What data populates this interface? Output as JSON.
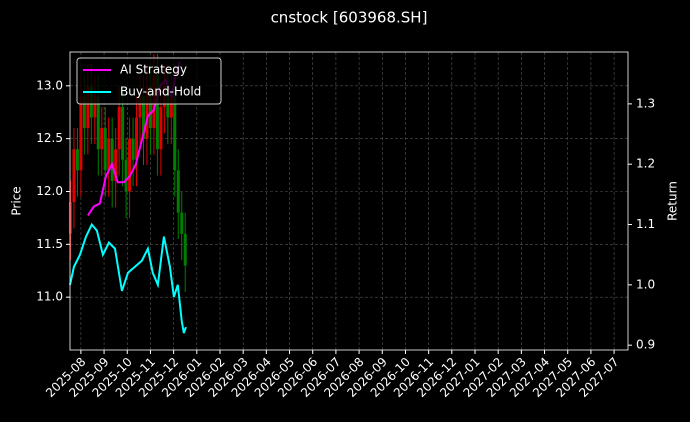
{
  "chart_data": {
    "type": "candlestick-with-returns",
    "title": "cnstock [603968.SH]",
    "ylabel": "Price",
    "y2label": "Return",
    "xlim": [
      -0.47,
      23.6
    ],
    "xticks": [
      {
        "value": 0,
        "label": "2025-08"
      },
      {
        "value": 1,
        "label": "2025-09"
      },
      {
        "value": 2,
        "label": "2025-10"
      },
      {
        "value": 3,
        "label": "2025-11"
      },
      {
        "value": 4,
        "label": "2025-12"
      },
      {
        "value": 5,
        "label": "2026-01"
      },
      {
        "value": 6,
        "label": "2026-02"
      },
      {
        "value": 7,
        "label": "2026-03"
      },
      {
        "value": 8,
        "label": "2026-04"
      },
      {
        "value": 9,
        "label": "2026-05"
      },
      {
        "value": 10,
        "label": "2026-06"
      },
      {
        "value": 11,
        "label": "2026-07"
      },
      {
        "value": 12,
        "label": "2026-08"
      },
      {
        "value": 13,
        "label": "2026-09"
      },
      {
        "value": 14,
        "label": "2026-10"
      },
      {
        "value": 15,
        "label": "2026-11"
      },
      {
        "value": 16,
        "label": "2026-12"
      },
      {
        "value": 17,
        "label": "2027-01"
      },
      {
        "value": 18,
        "label": "2027-02"
      },
      {
        "value": 19,
        "label": "2027-03"
      },
      {
        "value": 20,
        "label": "2027-04"
      },
      {
        "value": 21,
        "label": "2027-05"
      },
      {
        "value": 22,
        "label": "2027-06"
      },
      {
        "value": 23,
        "label": "2027-07"
      }
    ],
    "ylim": [
      10.5,
      13.32
    ],
    "yticks": [
      {
        "value": 11,
        "label": "11.0"
      },
      11.5,
      {
        "value": 12,
        "label": "12.0"
      },
      12.5,
      {
        "value": 13,
        "label": "13.0"
      }
    ],
    "y2lim": [
      0.892,
      1.386
    ],
    "y2ticks": [
      0.9,
      {
        "value": 1,
        "label": "1.0"
      },
      1.1,
      1.2,
      1.3
    ],
    "grid": true,
    "legend": "upper left",
    "candles": {
      "up_color": "#e00000",
      "down_color": "#008000",
      "x": [
        -0.45,
        -0.3,
        -0.15,
        0,
        0.15,
        0.3,
        0.45,
        0.6,
        0.75,
        0.9,
        1.05,
        1.2,
        1.35,
        1.5,
        1.65,
        1.8,
        1.95,
        2.1,
        2.25,
        2.4,
        2.55,
        2.7,
        2.85,
        3.0,
        3.15,
        3.3,
        3.45,
        3.6,
        3.75,
        3.9,
        4.05,
        4.2,
        4.35,
        4.5
      ],
      "open": [
        11.6,
        11.9,
        12.4,
        12.2,
        12.9,
        12.6,
        13.0,
        12.7,
        12.9,
        12.4,
        12.6,
        12.2,
        12.5,
        12.1,
        12.4,
        12.8,
        12.3,
        12.0,
        12.5,
        12.3,
        12.7,
        12.9,
        12.5,
        13.0,
        12.6,
        13.1,
        12.4,
        12.8,
        13.0,
        12.7,
        12.9,
        12.2,
        11.8,
        11.6
      ],
      "high": [
        12.1,
        12.6,
        12.6,
        13.1,
        13.1,
        13.2,
        13.2,
        13.1,
        13.1,
        12.8,
        12.8,
        12.7,
        12.7,
        12.6,
        13.0,
        13.0,
        12.5,
        12.7,
        12.7,
        12.9,
        13.1,
        13.1,
        13.2,
        13.2,
        13.3,
        13.3,
        13.0,
        13.2,
        13.2,
        13.1,
        13.1,
        12.4,
        12.0,
        11.8
      ],
      "low": [
        11.35,
        11.65,
        11.95,
        11.95,
        12.35,
        12.35,
        12.45,
        12.45,
        12.15,
        12.15,
        11.95,
        11.95,
        11.85,
        11.85,
        12.15,
        12.05,
        11.75,
        11.75,
        12.05,
        12.05,
        12.45,
        12.25,
        12.25,
        12.35,
        12.35,
        12.15,
        12.15,
        12.55,
        12.45,
        12.45,
        11.95,
        11.55,
        11.35,
        11.05
      ],
      "close": [
        11.9,
        12.4,
        12.2,
        12.9,
        12.6,
        13.0,
        12.7,
        12.9,
        12.4,
        12.6,
        12.2,
        12.5,
        12.1,
        12.4,
        12.8,
        12.3,
        12.0,
        12.5,
        12.3,
        12.7,
        12.9,
        12.5,
        13.0,
        12.6,
        13.1,
        12.4,
        12.8,
        13.0,
        12.7,
        12.9,
        12.2,
        11.8,
        11.6,
        11.3
      ]
    },
    "series": [
      {
        "name": "AI Strategy",
        "color": "#ff00ff",
        "axis": "y2",
        "x": [
          0.3,
          0.56,
          0.82,
          1.08,
          1.34,
          1.59,
          1.85,
          2.11,
          2.37,
          2.63,
          2.89,
          3.15,
          3.41,
          3.66,
          3.92,
          4.09,
          4.27
        ],
        "values": [
          1.115,
          1.13,
          1.135,
          1.18,
          1.2,
          1.17,
          1.17,
          1.18,
          1.2,
          1.24,
          1.28,
          1.29,
          1.33,
          1.34,
          1.31,
          1.35,
          1.37
        ]
      },
      {
        "name": "Buy-and-Hold",
        "color": "#00ffff",
        "axis": "y2",
        "x": [
          -0.47,
          -0.3,
          -0.04,
          0.22,
          0.47,
          0.69,
          0.95,
          1.21,
          1.47,
          1.77,
          2.03,
          2.33,
          2.63,
          2.89,
          3.1,
          3.32,
          3.58,
          3.84,
          4.01,
          4.18,
          4.35,
          4.44,
          4.53
        ],
        "values": [
          1.0,
          1.03,
          1.05,
          1.08,
          1.1,
          1.09,
          1.05,
          1.07,
          1.06,
          0.99,
          1.02,
          1.03,
          1.04,
          1.06,
          1.02,
          1.0,
          1.08,
          1.03,
          0.98,
          1.0,
          0.94,
          0.92,
          0.93
        ]
      }
    ]
  }
}
